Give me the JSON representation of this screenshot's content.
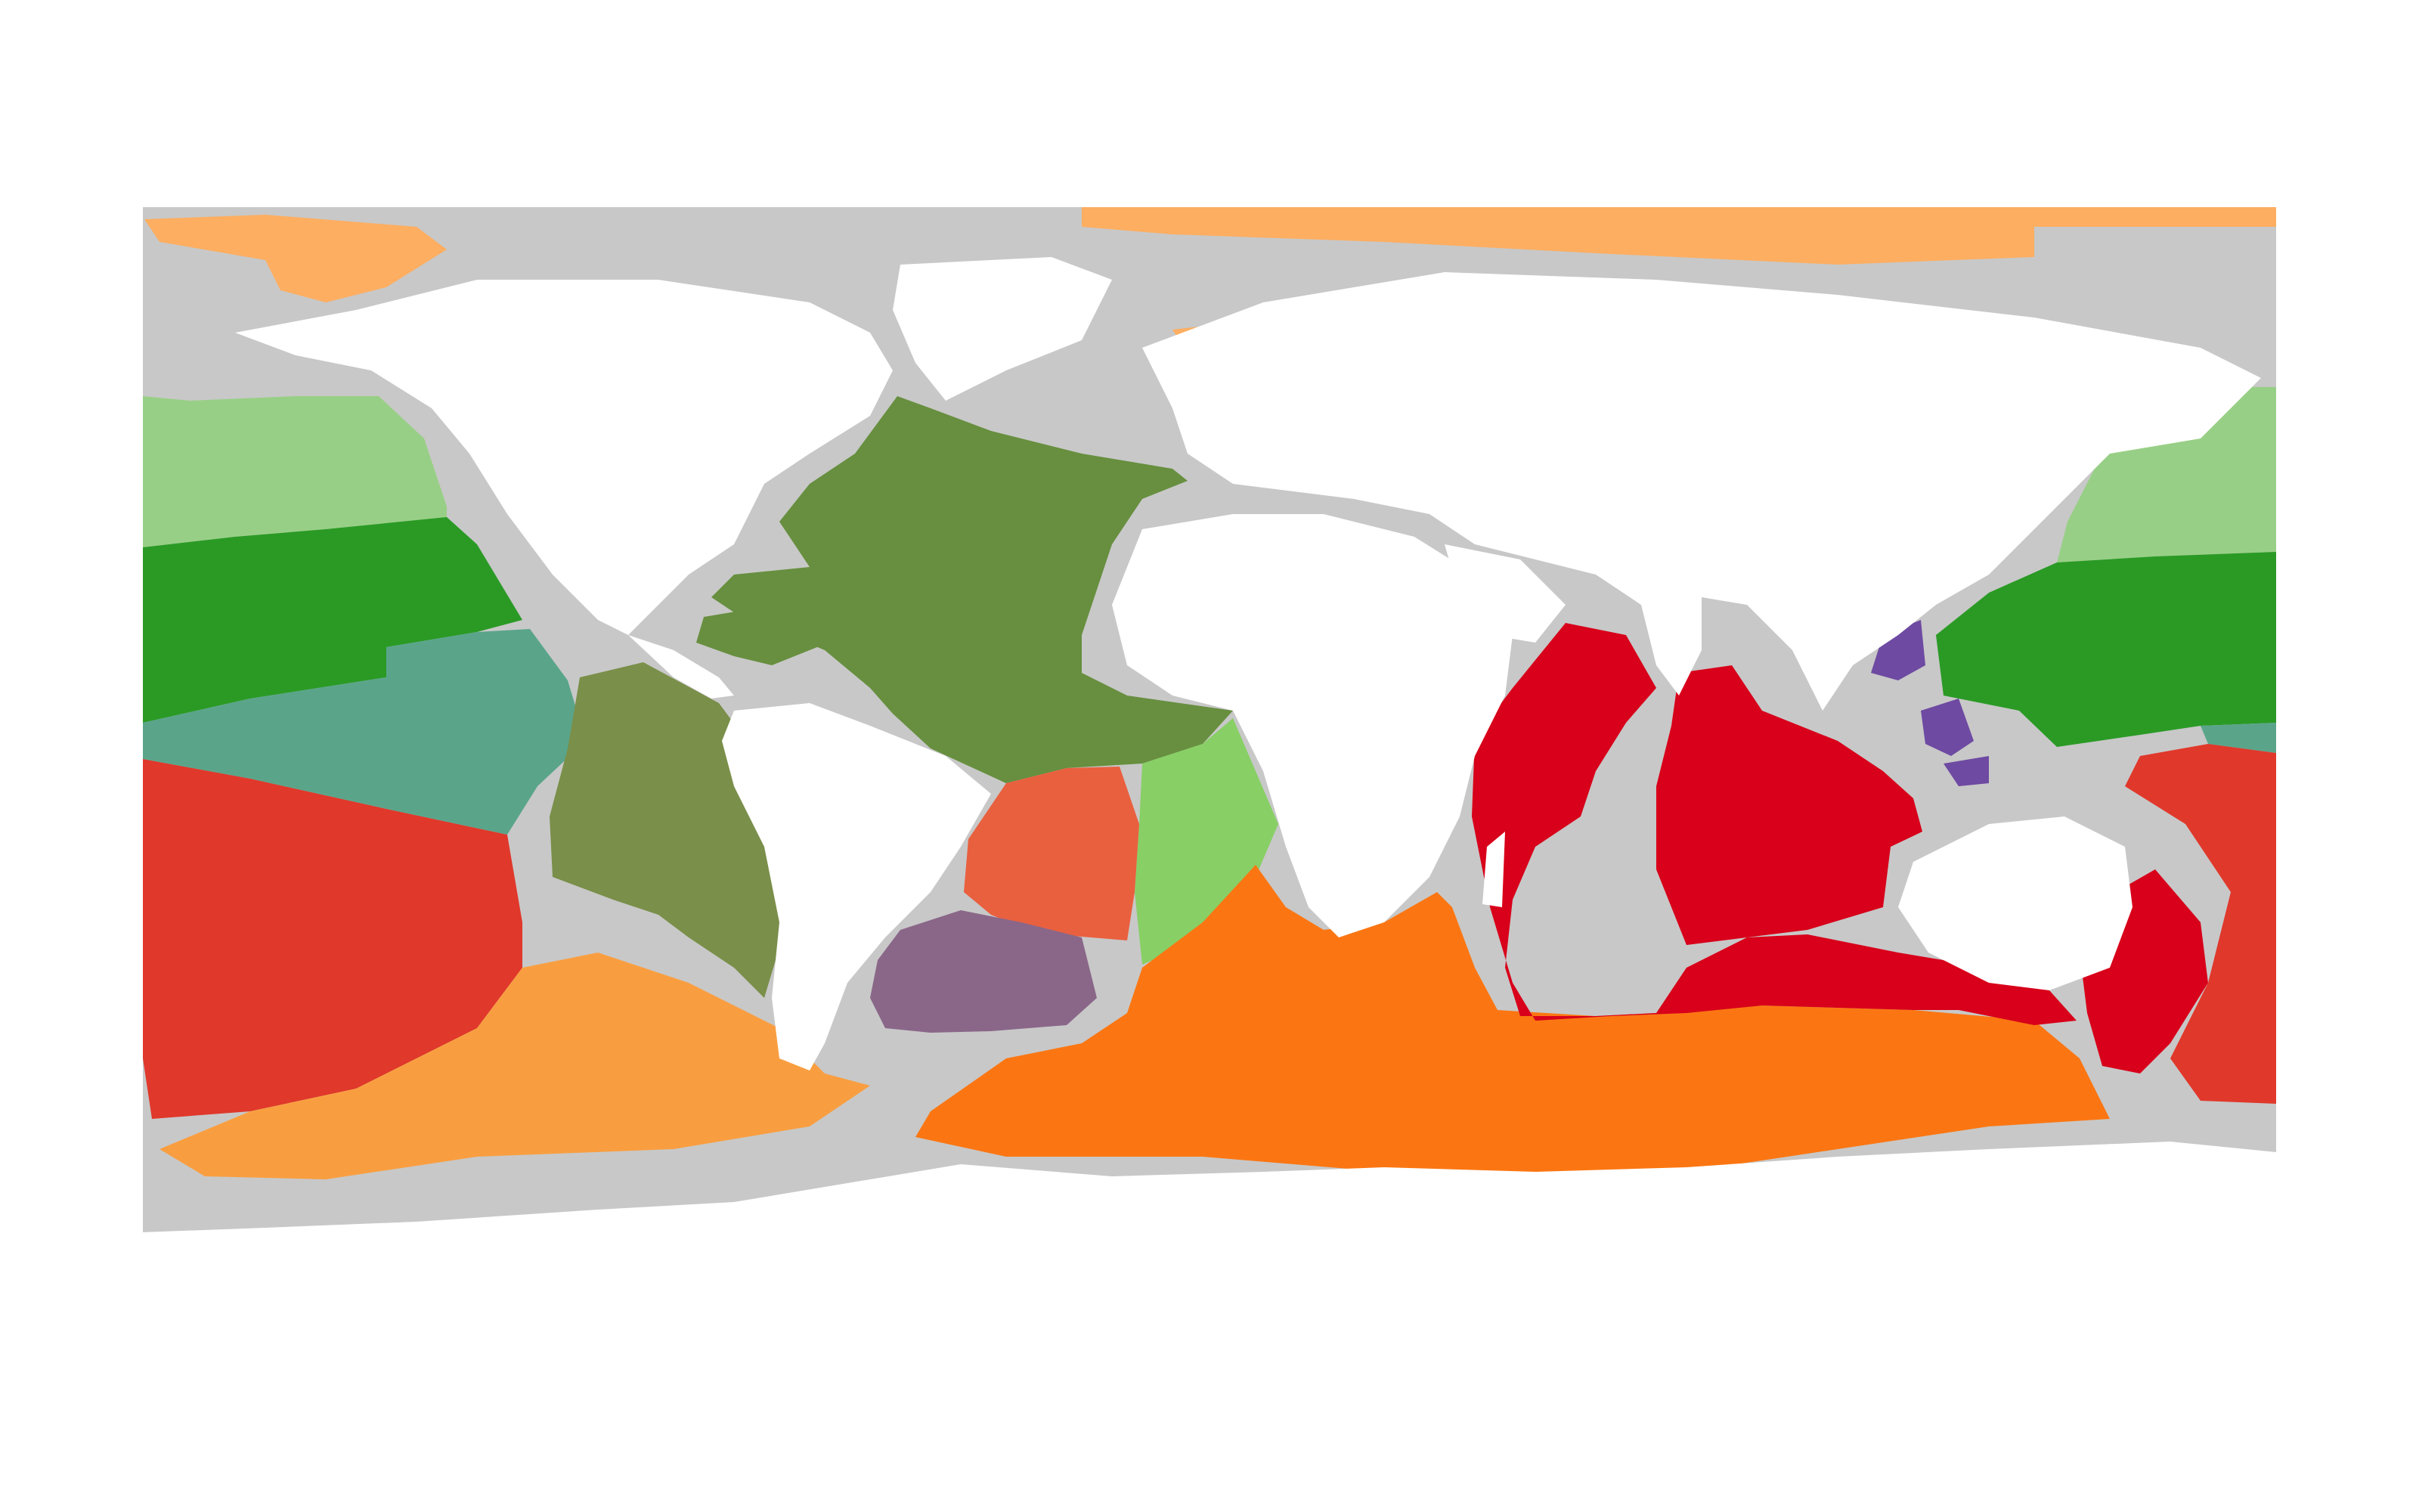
{
  "map": {
    "projection": "equirectangular",
    "background": "#ffffff",
    "shelf_color": "#c8c8c8",
    "land_color": "#ffffff",
    "provinces": [
      {
        "id": "arctic-1",
        "color": "#fdae61"
      },
      {
        "id": "north-pacific-subarctic",
        "color": "#98cf86"
      },
      {
        "id": "north-pacific-central",
        "color": "#2a9a25"
      },
      {
        "id": "east-pacific",
        "color": "#5aa58a"
      },
      {
        "id": "south-pacific",
        "color": "#e0382b"
      },
      {
        "id": "southern-ocean-pacific",
        "color": "#f99e40"
      },
      {
        "id": "north-atlantic",
        "color": "#678f3f"
      },
      {
        "id": "west-tropical-atlantic",
        "color": "#7a8f49"
      },
      {
        "id": "east-tropical-atlantic",
        "color": "#88cf66"
      },
      {
        "id": "south-atlantic-central",
        "color": "#e9603f"
      },
      {
        "id": "argentine-basin",
        "color": "#8a6789"
      },
      {
        "id": "southern-ocean-indian",
        "color": "#fb7612"
      },
      {
        "id": "indian-ocean",
        "color": "#d8001a"
      },
      {
        "id": "indo-pacific-marginal",
        "color": "#6e4aa2"
      }
    ]
  }
}
